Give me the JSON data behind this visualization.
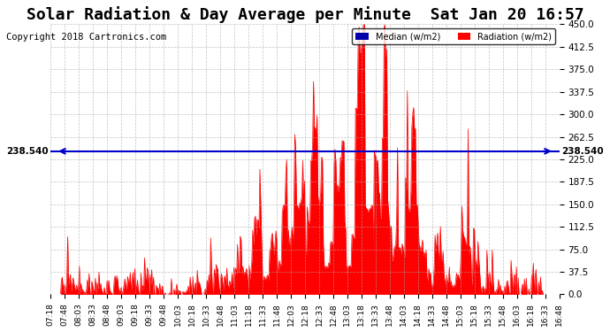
{
  "title": "Solar Radiation & Day Average per Minute  Sat Jan 20 16:57",
  "copyright": "Copyright 2018 Cartronics.com",
  "median_value": 238.54,
  "median_label": "238.540",
  "y_min": 0.0,
  "y_max": 450.0,
  "y_ticks": [
    0.0,
    37.5,
    75.0,
    112.5,
    150.0,
    187.5,
    225.0,
    262.5,
    300.0,
    337.5,
    375.0,
    412.5,
    450.0
  ],
  "radiation_color": "#FF0000",
  "median_color": "#0000CC",
  "background_color": "#FFFFFF",
  "plot_bg_color": "#FFFFFF",
  "legend_median_color": "#0000AA",
  "legend_radiation_color": "#FF0000",
  "grid_color": "#AAAAAA",
  "title_fontsize": 13,
  "copyright_fontsize": 7.5,
  "x_tick_labels": [
    "07:18",
    "07:48",
    "08:03",
    "08:33",
    "08:48",
    "09:03",
    "09:18",
    "09:33",
    "09:48",
    "10:03",
    "10:18",
    "10:33",
    "10:48",
    "11:03",
    "11:18",
    "11:33",
    "11:48",
    "12:03",
    "12:18",
    "12:33",
    "12:48",
    "13:03",
    "13:18",
    "13:33",
    "13:48",
    "14:03",
    "14:18",
    "14:33",
    "14:48",
    "15:03",
    "15:18",
    "15:33",
    "15:48",
    "16:03",
    "16:18",
    "16:33",
    "16:48"
  ]
}
